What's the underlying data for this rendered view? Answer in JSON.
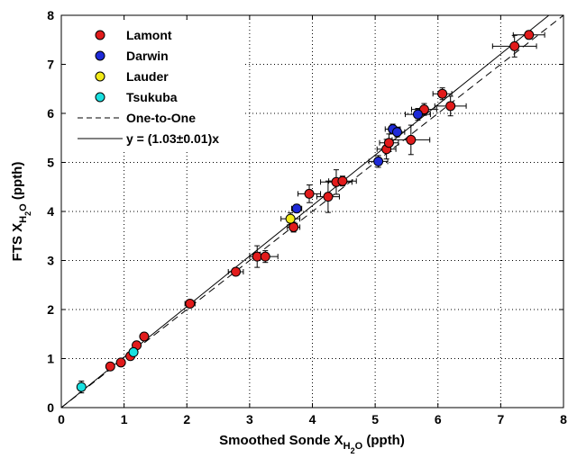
{
  "chart_data": {
    "type": "scatter",
    "xlabel": {
      "main": "Smoothed Sonde X",
      "sub": "H",
      "subsub": "2",
      "sub2": "O",
      "unit": " (ppth)"
    },
    "ylabel": {
      "main": "FTS X",
      "sub": "H",
      "subsub": "2",
      "sub2": "O",
      "unit": " (ppth)"
    },
    "xlim": [
      0,
      8
    ],
    "ylim": [
      0,
      8
    ],
    "xticks": [
      "0",
      "1",
      "2",
      "3",
      "4",
      "5",
      "6",
      "7",
      "8"
    ],
    "yticks": [
      "0",
      "1",
      "2",
      "3",
      "4",
      "5",
      "6",
      "7",
      "8"
    ],
    "grid": true,
    "legend_placement": "top-left",
    "series": [
      {
        "name": "Lamont",
        "color": "#e11b1b",
        "points": [
          {
            "x": 0.78,
            "y": 0.84,
            "xerr": 0.05,
            "yerr": 0.03
          },
          {
            "x": 0.95,
            "y": 0.92,
            "xerr": 0.05,
            "yerr": 0.03
          },
          {
            "x": 1.1,
            "y": 1.05,
            "xerr": 0.05,
            "yerr": 0.04
          },
          {
            "x": 1.2,
            "y": 1.27,
            "xerr": 0.05,
            "yerr": 0.04
          },
          {
            "x": 1.32,
            "y": 1.45,
            "xerr": 0.05,
            "yerr": 0.04
          },
          {
            "x": 2.05,
            "y": 2.12,
            "xerr": 0.08,
            "yerr": 0.05
          },
          {
            "x": 2.78,
            "y": 2.77,
            "xerr": 0.12,
            "yerr": 0.07
          },
          {
            "x": 3.12,
            "y": 3.08,
            "xerr": 0.12,
            "yerr": 0.22
          },
          {
            "x": 3.25,
            "y": 3.08,
            "xerr": 0.2,
            "yerr": 0.12
          },
          {
            "x": 3.7,
            "y": 3.68,
            "xerr": 0.1,
            "yerr": 0.1
          },
          {
            "x": 3.95,
            "y": 4.36,
            "xerr": 0.18,
            "yerr": 0.18
          },
          {
            "x": 4.25,
            "y": 4.3,
            "xerr": 0.18,
            "yerr": 0.32
          },
          {
            "x": 4.38,
            "y": 4.6,
            "xerr": 0.25,
            "yerr": 0.25
          },
          {
            "x": 4.48,
            "y": 4.62,
            "xerr": 0.22,
            "yerr": 0.1
          },
          {
            "x": 5.18,
            "y": 5.27,
            "xerr": 0.15,
            "yerr": 0.2
          },
          {
            "x": 5.22,
            "y": 5.4,
            "xerr": 0.15,
            "yerr": 0.18
          },
          {
            "x": 5.57,
            "y": 5.46,
            "xerr": 0.3,
            "yerr": 0.3
          },
          {
            "x": 5.78,
            "y": 6.08,
            "xerr": 0.2,
            "yerr": 0.12
          },
          {
            "x": 6.07,
            "y": 6.4,
            "xerr": 0.15,
            "yerr": 0.12
          },
          {
            "x": 6.2,
            "y": 6.15,
            "xerr": 0.25,
            "yerr": 0.2
          },
          {
            "x": 7.22,
            "y": 7.37,
            "xerr": 0.35,
            "yerr": 0.22
          },
          {
            "x": 7.45,
            "y": 7.6,
            "xerr": 0.25,
            "yerr": 0.08
          }
        ]
      },
      {
        "name": "Darwin",
        "color": "#1e2ad8",
        "points": [
          {
            "x": 3.75,
            "y": 4.06,
            "xerr": 0.08,
            "yerr": 0.08
          },
          {
            "x": 5.05,
            "y": 5.02,
            "xerr": 0.15,
            "yerr": 0.12
          },
          {
            "x": 5.28,
            "y": 5.68,
            "xerr": 0.12,
            "yerr": 0.1
          },
          {
            "x": 5.35,
            "y": 5.62,
            "xerr": 0.12,
            "yerr": 0.1
          },
          {
            "x": 5.68,
            "y": 5.98,
            "xerr": 0.2,
            "yerr": 0.12
          }
        ]
      },
      {
        "name": "Lauder",
        "color": "#f2ea18",
        "points": [
          {
            "x": 3.65,
            "y": 3.85,
            "xerr": 0.15,
            "yerr": 0.12
          }
        ]
      },
      {
        "name": "Tsukuba",
        "color": "#19e0e0",
        "points": [
          {
            "x": 0.32,
            "y": 0.42,
            "xerr": 0.04,
            "yerr": 0.12
          },
          {
            "x": 1.15,
            "y": 1.13,
            "xerr": 0.06,
            "yerr": 0.04
          }
        ]
      }
    ],
    "lines": [
      {
        "name": "One-to-One",
        "slope": 1.0,
        "style": "dashed"
      },
      {
        "name": "y = (1.03±0.01)x",
        "slope": 1.03,
        "style": "solid"
      }
    ]
  }
}
